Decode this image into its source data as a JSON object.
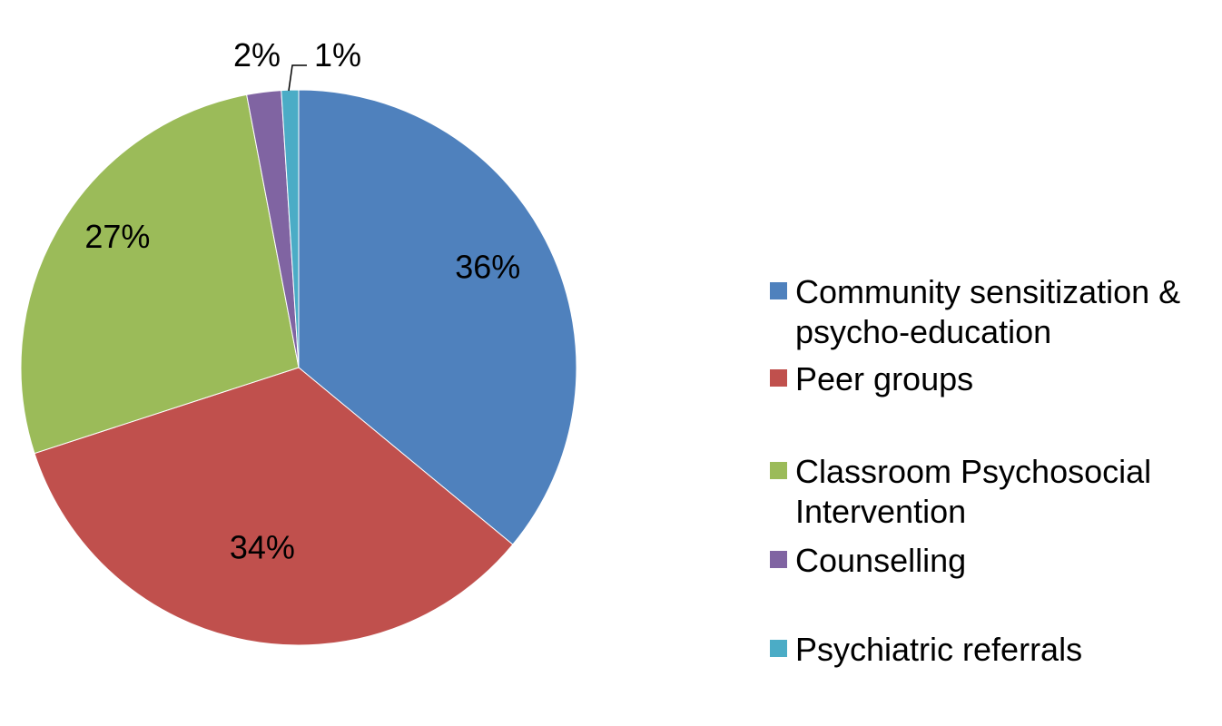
{
  "chart_data": {
    "type": "pie",
    "title": "",
    "slices": [
      {
        "label": "Community sensitization & psycho-education",
        "value": 36,
        "value_label": "36%",
        "color": "#4F81BD"
      },
      {
        "label": "Peer groups",
        "value": 34,
        "value_label": "34%",
        "color": "#C0504D"
      },
      {
        "label": "Classroom Psychosocial Intervention",
        "value": 27,
        "value_label": "27%",
        "color": "#9BBB59"
      },
      {
        "label": "Counselling",
        "value": 2,
        "value_label": "2%",
        "color": "#8064A2"
      },
      {
        "label": "Psychiatric referrals",
        "value": 1,
        "value_label": "1%",
        "color": "#4BACC6"
      }
    ],
    "start_angle": "12 o'clock",
    "direction": "clockwise",
    "legend_position": "right"
  },
  "legend": {
    "items": [
      {
        "label": "Community sensitization & psycho-education",
        "color": "#4F81BD"
      },
      {
        "label": "Peer groups",
        "color": "#C0504D"
      },
      {
        "label": "Classroom Psychosocial Intervention",
        "color": "#9BBB59"
      },
      {
        "label": "Counselling",
        "color": "#8064A2"
      },
      {
        "label": "Psychiatric referrals",
        "color": "#4BACC6"
      }
    ]
  }
}
